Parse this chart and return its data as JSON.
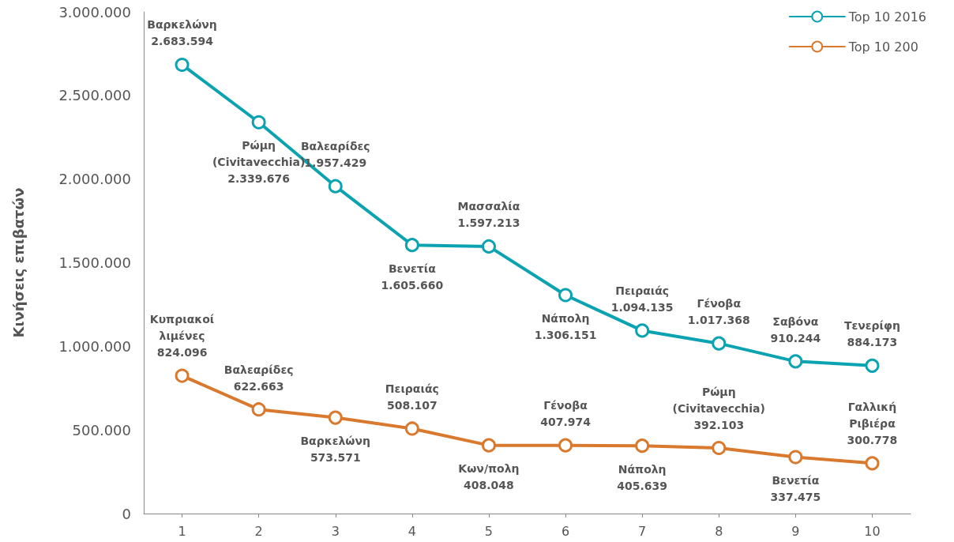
{
  "chart_data": {
    "type": "line",
    "ylabel": "Κινήσεις επιβατών",
    "categories": [
      "1",
      "2",
      "3",
      "4",
      "5",
      "6",
      "7",
      "8",
      "9",
      "10"
    ],
    "series": [
      {
        "name": "Top 10 2016",
        "color": "#0ba3b1",
        "values": [
          2683594,
          2339676,
          1957429,
          1605660,
          1597213,
          1306151,
          1094135,
          1017368,
          910244,
          884173
        ],
        "value_labels": [
          "Βαρκελώνη\n2.683.594",
          "Ρώμη\n(Civitavecchia)\n2.339.676",
          "Βαλεαρίδες\n1.957.429",
          "Βενετία\n1.605.660",
          "Μασσαλία\n1.597.213",
          "Νάπολη\n1.306.151",
          "Πειραιάς\n1.094.135",
          "Γένοβα\n1.017.368",
          "Σαβόνα\n910.244",
          "Τενερίφη\n884.173"
        ]
      },
      {
        "name": "Top 10 200",
        "color": "#d9792e",
        "values": [
          824096,
          622663,
          573571,
          508107,
          408048,
          407974,
          405639,
          392103,
          337475,
          300778
        ],
        "value_labels": [
          "Κυπριακοί\nλιμένες\n824.096",
          "Βαλεαρίδες\n622.663",
          "Βαρκελώνη\n573.571",
          "Πειραιάς\n508.107",
          "Κων/πολη\n408.048",
          "Γένοβα\n407.974",
          "Νάπολη\n405.639",
          "Ρώμη\n(Civitavecchia)\n392.103",
          "Βενετία\n337.475",
          "Γαλλική\nΡιβιέρα\n300.778"
        ]
      }
    ],
    "ylim": [
      0,
      3000000
    ],
    "yticks": [
      {
        "value": 0,
        "label": "0"
      },
      {
        "value": 500000,
        "label": "500.000"
      },
      {
        "value": 1000000,
        "label": "1.000.000"
      },
      {
        "value": 1500000,
        "label": "1.500.000"
      },
      {
        "value": 2000000,
        "label": "2.000.000"
      },
      {
        "value": 2500000,
        "label": "2.500.000"
      },
      {
        "value": 3000000,
        "label": "3.000.000"
      }
    ],
    "grid": false,
    "legend": "top right",
    "marker": "circle",
    "line_style": "solid"
  }
}
